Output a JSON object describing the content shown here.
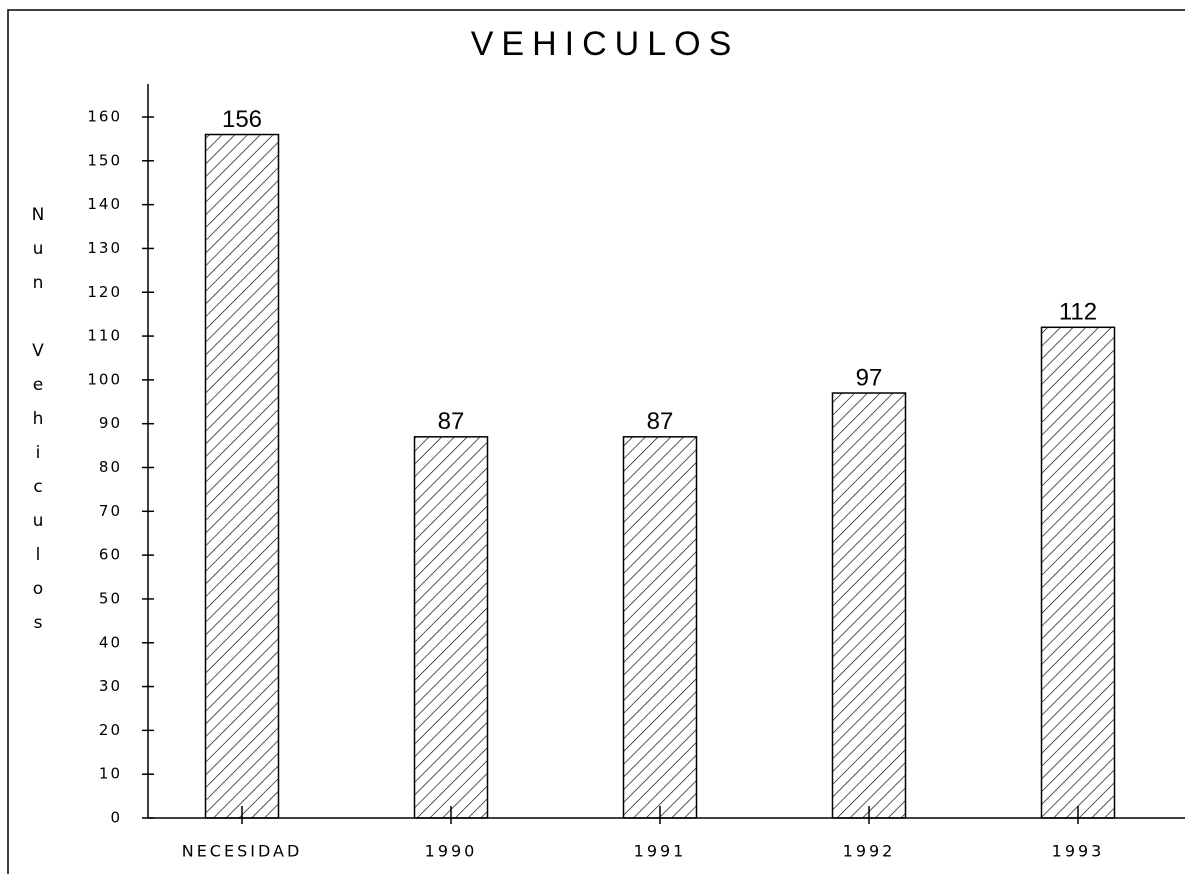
{
  "chart_data": {
    "type": "bar",
    "title": "VEHICULOS",
    "y_label": "Nun Vehiculos",
    "categories": [
      "NECESIDAD",
      "1990",
      "1991",
      "1992",
      "1993"
    ],
    "values": [
      156,
      87,
      87,
      97,
      112
    ],
    "color": "#000000",
    "ylim": [
      0,
      160
    ],
    "yticks": [
      0,
      10,
      20,
      30,
      40,
      50,
      60,
      70,
      80,
      90,
      100,
      110,
      120,
      130,
      140,
      150,
      160
    ]
  }
}
